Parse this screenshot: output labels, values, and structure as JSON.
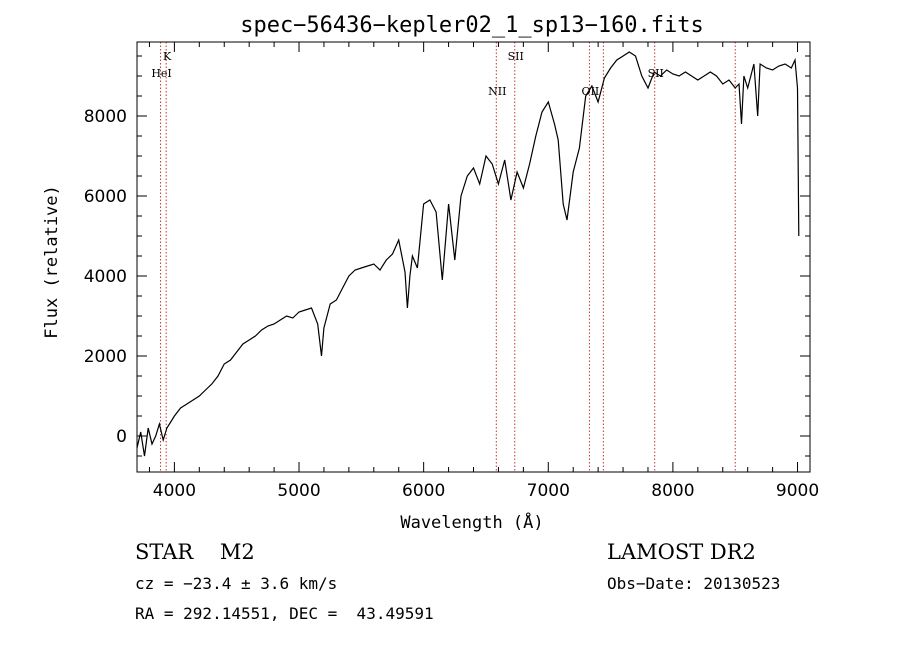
{
  "chart_data": {
    "type": "line",
    "title": "spec−56436−kepler02_1_sp13−160.fits",
    "xlabel": "Wavelength (Å)",
    "ylabel": "Flux (relative)",
    "xlim": [
      3700,
      9100
    ],
    "ylim": [
      -900,
      9850
    ],
    "xticks": [
      4000,
      5000,
      6000,
      7000,
      8000,
      9000
    ],
    "yticks": [
      0,
      2000,
      4000,
      6000,
      8000
    ],
    "grid": false,
    "series": [
      {
        "x": [
          3700,
          3730,
          3760,
          3790,
          3820,
          3850,
          3880,
          3910,
          3940,
          3970,
          4000,
          4050,
          4100,
          4150,
          4200,
          4250,
          4300,
          4350,
          4400,
          4450,
          4500,
          4550,
          4600,
          4650,
          4700,
          4750,
          4800,
          4850,
          4900,
          4950,
          5000,
          5050,
          5100,
          5150,
          5180,
          5200,
          5250,
          5300,
          5350,
          5400,
          5450,
          5500,
          5550,
          5600,
          5650,
          5700,
          5750,
          5800,
          5850,
          5870,
          5890,
          5910,
          5950,
          6000,
          6050,
          6100,
          6150,
          6200,
          6250,
          6300,
          6350,
          6400,
          6450,
          6500,
          6550,
          6600,
          6650,
          6700,
          6750,
          6800,
          6850,
          6900,
          6950,
          7000,
          7050,
          7080,
          7120,
          7150,
          7200,
          7250,
          7300,
          7350,
          7400,
          7450,
          7500,
          7550,
          7600,
          7650,
          7700,
          7750,
          7800,
          7850,
          7900,
          7950,
          8000,
          8050,
          8100,
          8150,
          8200,
          8250,
          8300,
          8350,
          8400,
          8450,
          8500,
          8530,
          8550,
          8570,
          8600,
          8650,
          8680,
          8700,
          8750,
          8800,
          8850,
          8900,
          8950,
          8980,
          9000,
          9010
        ],
        "y": [
          -300,
          100,
          -500,
          200,
          -200,
          0,
          300,
          -100,
          200,
          350,
          500,
          700,
          800,
          900,
          1000,
          1150,
          1300,
          1500,
          1800,
          1900,
          2100,
          2300,
          2400,
          2500,
          2650,
          2750,
          2800,
          2900,
          3000,
          2950,
          3100,
          3150,
          3200,
          2800,
          2000,
          2700,
          3300,
          3400,
          3700,
          4000,
          4150,
          4200,
          4250,
          4300,
          4150,
          4400,
          4550,
          4900,
          4100,
          3200,
          4000,
          4500,
          4200,
          5800,
          5900,
          5600,
          3900,
          5800,
          4400,
          6000,
          6500,
          6700,
          6300,
          7000,
          6800,
          6300,
          6900,
          5900,
          6600,
          6200,
          6800,
          7500,
          8100,
          8350,
          7800,
          7400,
          5800,
          5400,
          6600,
          7200,
          8500,
          8750,
          8350,
          8950,
          9200,
          9400,
          9500,
          9600,
          9500,
          9000,
          8700,
          9100,
          9000,
          9150,
          9050,
          9000,
          9100,
          9000,
          8900,
          9000,
          9100,
          9000,
          8800,
          8900,
          8700,
          8800,
          7800,
          9000,
          8700,
          9300,
          8000,
          9300,
          9200,
          9150,
          9250,
          9300,
          9200,
          9400,
          8700,
          5000
        ]
      }
    ],
    "annotations": [
      {
        "label": "K",
        "x": 3934
      },
      {
        "label": "HeI",
        "x": 3889
      },
      {
        "label": "NII",
        "x": 6583
      },
      {
        "label": "SII",
        "x": 6731
      },
      {
        "label": "OII",
        "x": 7330
      },
      {
        "label": "SII",
        "x": 7854
      },
      {
        "label": "",
        "x": 7442
      },
      {
        "label": "",
        "x": 8500
      }
    ]
  },
  "info": {
    "star": "STAR    M2",
    "cz": "cz = −23.4 ± 3.6 km/s",
    "radec": "RA = 292.14551, DEC =  43.49591",
    "survey": "LAMOST DR2",
    "obsdate": "Obs−Date: 20130523"
  },
  "colors": {
    "spectrum": "#000000",
    "lines": "#c0392b"
  }
}
